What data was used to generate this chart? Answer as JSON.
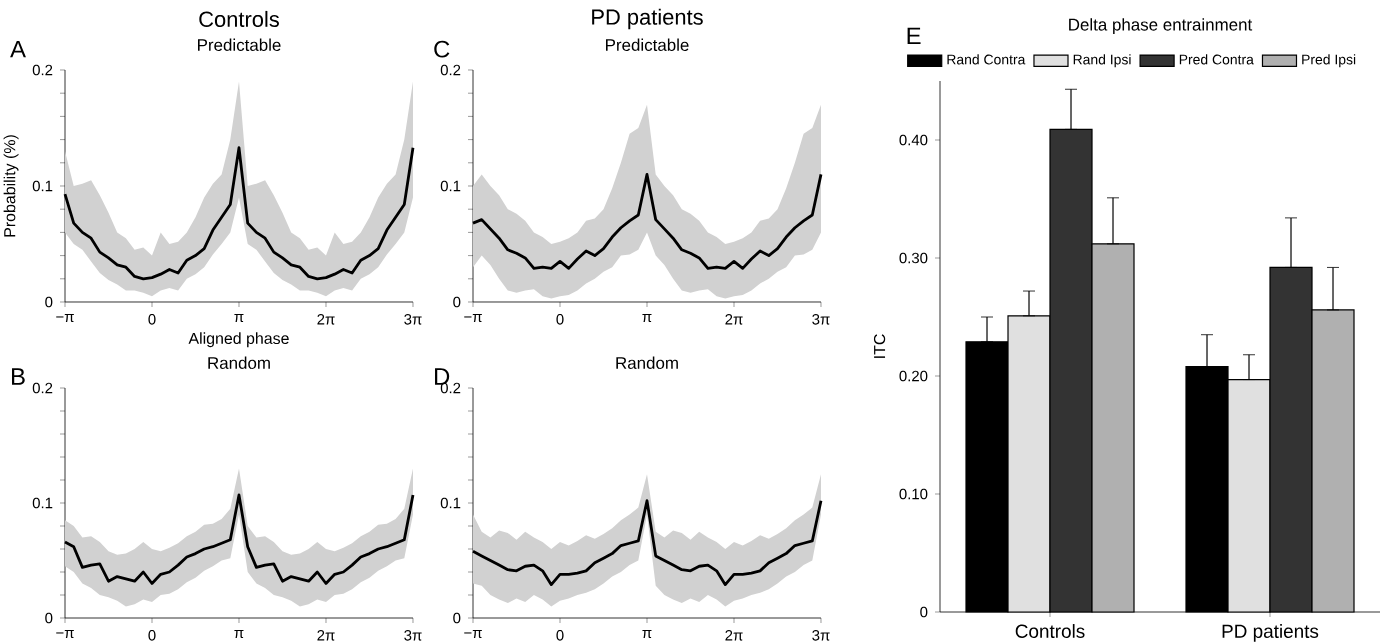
{
  "chart_data": [
    {
      "type": "line",
      "title": "Predictable",
      "xlabel": "Aligned phase",
      "ylabel": "Probability (%)",
      "annotations": [
        "A",
        "Controls"
      ],
      "x": [
        -3.1416,
        -2.8274,
        -2.5133,
        -2.1991,
        -1.885,
        -1.5708,
        -1.2566,
        -0.9425,
        -0.6283,
        -0.3142,
        0,
        0.3142,
        0.6283,
        0.9425,
        1.2566,
        1.5708,
        1.885,
        2.1991,
        2.5133,
        2.8274,
        3.1416,
        3.4558,
        3.7699,
        4.0841,
        4.3982,
        4.7124,
        5.0265,
        5.3407,
        5.6549,
        5.969,
        6.2832,
        6.5973,
        6.9115,
        7.2257,
        7.5398,
        7.854,
        8.1681,
        8.4823,
        8.7965,
        9.1106,
        9.4248
      ],
      "xlim": [
        -3.1416,
        9.4248
      ],
      "xticks": [
        {
          "value": -3.1416,
          "label": "−π"
        },
        0,
        {
          "value": 3.1416,
          "label": "π"
        },
        {
          "value": 6.2832,
          "label": "2π"
        },
        {
          "value": 9.4248,
          "label": "3π"
        }
      ],
      "ylim": [
        0,
        0.2
      ],
      "yticks": [
        0,
        {
          "value": 0.02,
          "label": null
        },
        {
          "value": 0.04,
          "label": null
        },
        {
          "value": 0.06,
          "label": null
        },
        {
          "value": 0.08,
          "label": null
        },
        0.1,
        {
          "value": 0.12,
          "label": null
        },
        {
          "value": 0.14,
          "label": null
        },
        {
          "value": 0.16,
          "label": null
        },
        {
          "value": 0.18,
          "label": null
        },
        0.2
      ],
      "series": [
        {
          "color": "#000000",
          "values": [
            0.093,
            0.068,
            0.06,
            0.055,
            0.043,
            0.038,
            0.032,
            0.03,
            0.022,
            0.02,
            0.021,
            0.024,
            0.028,
            0.025,
            0.036,
            0.04,
            0.046,
            0.062,
            0.073,
            0.084,
            0.133,
            0.068,
            0.06,
            0.055,
            0.043,
            0.038,
            0.032,
            0.03,
            0.022,
            0.02,
            0.021,
            0.024,
            0.028,
            0.025,
            0.036,
            0.04,
            0.046,
            0.062,
            0.073,
            0.084,
            0.133
          ],
          "lower": [
            0.06,
            0.05,
            0.045,
            0.035,
            0.025,
            0.019,
            0.015,
            0.01,
            0.01,
            0.008,
            0.005,
            0.01,
            0.012,
            0.01,
            0.02,
            0.024,
            0.03,
            0.041,
            0.05,
            0.06,
            0.09,
            0.05,
            0.045,
            0.035,
            0.025,
            0.019,
            0.015,
            0.01,
            0.01,
            0.008,
            0.005,
            0.01,
            0.012,
            0.01,
            0.02,
            0.024,
            0.03,
            0.041,
            0.05,
            0.06,
            0.09
          ],
          "upper": [
            0.13,
            0.1,
            0.102,
            0.105,
            0.092,
            0.077,
            0.06,
            0.055,
            0.045,
            0.047,
            0.04,
            0.06,
            0.05,
            0.052,
            0.06,
            0.073,
            0.09,
            0.102,
            0.11,
            0.14,
            0.19,
            0.1,
            0.102,
            0.105,
            0.092,
            0.077,
            0.06,
            0.055,
            0.045,
            0.047,
            0.04,
            0.06,
            0.05,
            0.052,
            0.06,
            0.073,
            0.09,
            0.102,
            0.11,
            0.14,
            0.19
          ]
        }
      ]
    },
    {
      "type": "line",
      "title": "Random",
      "annotations": [
        "B"
      ],
      "x": [
        -3.1416,
        -2.8274,
        -2.5133,
        -2.1991,
        -1.885,
        -1.5708,
        -1.2566,
        -0.9425,
        -0.6283,
        -0.3142,
        0,
        0.3142,
        0.6283,
        0.9425,
        1.2566,
        1.5708,
        1.885,
        2.1991,
        2.5133,
        2.8274,
        3.1416,
        3.4558,
        3.7699,
        4.0841,
        4.3982,
        4.7124,
        5.0265,
        5.3407,
        5.6549,
        5.969,
        6.2832,
        6.5973,
        6.9115,
        7.2257,
        7.5398,
        7.854,
        8.1681,
        8.4823,
        8.7965,
        9.1106,
        9.4248
      ],
      "xlim": [
        -3.1416,
        9.4248
      ],
      "xticks": [
        {
          "value": -3.1416,
          "label": "−π"
        },
        0,
        {
          "value": 3.1416,
          "label": "π"
        },
        {
          "value": 6.2832,
          "label": "2π"
        },
        {
          "value": 9.4248,
          "label": "3π"
        }
      ],
      "ylim": [
        0,
        0.2
      ],
      "yticks": [
        0,
        {
          "value": 0.02,
          "label": null
        },
        {
          "value": 0.04,
          "label": null
        },
        {
          "value": 0.06,
          "label": null
        },
        {
          "value": 0.08,
          "label": null
        },
        0.1,
        {
          "value": 0.12,
          "label": null
        },
        {
          "value": 0.14,
          "label": null
        },
        {
          "value": 0.16,
          "label": null
        },
        {
          "value": 0.18,
          "label": null
        },
        0.2
      ],
      "series": [
        {
          "color": "#000000",
          "values": [
            0.066,
            0.062,
            0.044,
            0.046,
            0.047,
            0.032,
            0.036,
            0.034,
            0.032,
            0.04,
            0.03,
            0.038,
            0.04,
            0.046,
            0.053,
            0.056,
            0.06,
            0.062,
            0.065,
            0.068,
            0.107,
            0.062,
            0.044,
            0.046,
            0.047,
            0.032,
            0.036,
            0.034,
            0.032,
            0.04,
            0.03,
            0.038,
            0.04,
            0.046,
            0.053,
            0.056,
            0.06,
            0.062,
            0.065,
            0.068,
            0.107
          ],
          "lower": [
            0.045,
            0.04,
            0.03,
            0.026,
            0.02,
            0.018,
            0.015,
            0.01,
            0.012,
            0.016,
            0.014,
            0.02,
            0.021,
            0.025,
            0.031,
            0.035,
            0.041,
            0.045,
            0.05,
            0.052,
            0.09,
            0.04,
            0.03,
            0.026,
            0.02,
            0.018,
            0.015,
            0.01,
            0.012,
            0.016,
            0.014,
            0.02,
            0.021,
            0.025,
            0.031,
            0.035,
            0.041,
            0.045,
            0.05,
            0.052,
            0.09
          ],
          "upper": [
            0.085,
            0.08,
            0.07,
            0.071,
            0.066,
            0.058,
            0.055,
            0.056,
            0.06,
            0.066,
            0.06,
            0.058,
            0.061,
            0.065,
            0.071,
            0.075,
            0.081,
            0.082,
            0.086,
            0.095,
            0.13,
            0.08,
            0.07,
            0.071,
            0.066,
            0.058,
            0.055,
            0.056,
            0.06,
            0.066,
            0.06,
            0.058,
            0.061,
            0.065,
            0.071,
            0.075,
            0.081,
            0.082,
            0.086,
            0.095,
            0.13
          ]
        }
      ]
    },
    {
      "type": "line",
      "title": "Predictable",
      "annotations": [
        "C",
        "PD patients"
      ],
      "x": [
        -3.1416,
        -2.8274,
        -2.5133,
        -2.1991,
        -1.885,
        -1.5708,
        -1.2566,
        -0.9425,
        -0.6283,
        -0.3142,
        0,
        0.3142,
        0.6283,
        0.9425,
        1.2566,
        1.5708,
        1.885,
        2.1991,
        2.5133,
        2.8274,
        3.1416,
        3.4558,
        3.7699,
        4.0841,
        4.3982,
        4.7124,
        5.0265,
        5.3407,
        5.6549,
        5.969,
        6.2832,
        6.5973,
        6.9115,
        7.2257,
        7.5398,
        7.854,
        8.1681,
        8.4823,
        8.7965,
        9.1106,
        9.4248
      ],
      "xlim": [
        -3.1416,
        9.4248
      ],
      "xticks": [
        {
          "value": -3.1416,
          "label": "−π"
        },
        0,
        {
          "value": 3.1416,
          "label": "π"
        },
        {
          "value": 6.2832,
          "label": "2π"
        },
        {
          "value": 9.4248,
          "label": "3π"
        }
      ],
      "ylim": [
        0,
        0.2
      ],
      "yticks": [
        0,
        {
          "value": 0.02,
          "label": null
        },
        {
          "value": 0.04,
          "label": null
        },
        {
          "value": 0.06,
          "label": null
        },
        {
          "value": 0.08,
          "label": null
        },
        0.1,
        {
          "value": 0.12,
          "label": null
        },
        {
          "value": 0.14,
          "label": null
        },
        {
          "value": 0.16,
          "label": null
        },
        {
          "value": 0.18,
          "label": null
        },
        0.2
      ],
      "series": [
        {
          "color": "#000000",
          "values": [
            0.068,
            0.071,
            0.063,
            0.055,
            0.045,
            0.042,
            0.038,
            0.029,
            0.03,
            0.029,
            0.035,
            0.029,
            0.037,
            0.044,
            0.04,
            0.046,
            0.056,
            0.064,
            0.07,
            0.075,
            0.11,
            0.071,
            0.063,
            0.055,
            0.045,
            0.042,
            0.038,
            0.029,
            0.03,
            0.029,
            0.035,
            0.029,
            0.037,
            0.044,
            0.04,
            0.046,
            0.056,
            0.064,
            0.07,
            0.075,
            0.11
          ],
          "lower": [
            0.03,
            0.04,
            0.032,
            0.02,
            0.01,
            0.008,
            0.01,
            0.011,
            0.005,
            0.003,
            0.005,
            0.006,
            0.01,
            0.016,
            0.02,
            0.026,
            0.03,
            0.04,
            0.041,
            0.045,
            0.06,
            0.04,
            0.032,
            0.02,
            0.01,
            0.008,
            0.01,
            0.011,
            0.005,
            0.003,
            0.005,
            0.006,
            0.01,
            0.016,
            0.02,
            0.026,
            0.03,
            0.04,
            0.041,
            0.045,
            0.06
          ],
          "upper": [
            0.1,
            0.11,
            0.1,
            0.092,
            0.08,
            0.076,
            0.07,
            0.06,
            0.056,
            0.05,
            0.052,
            0.055,
            0.06,
            0.07,
            0.072,
            0.08,
            0.098,
            0.12,
            0.145,
            0.15,
            0.17,
            0.11,
            0.1,
            0.092,
            0.08,
            0.076,
            0.07,
            0.06,
            0.056,
            0.05,
            0.052,
            0.055,
            0.06,
            0.07,
            0.072,
            0.08,
            0.098,
            0.12,
            0.145,
            0.15,
            0.17
          ]
        }
      ]
    },
    {
      "type": "line",
      "title": "Random",
      "annotations": [
        "D"
      ],
      "x": [
        -3.1416,
        -2.8274,
        -2.5133,
        -2.1991,
        -1.885,
        -1.5708,
        -1.2566,
        -0.9425,
        -0.6283,
        -0.3142,
        0,
        0.3142,
        0.6283,
        0.9425,
        1.2566,
        1.5708,
        1.885,
        2.1991,
        2.5133,
        2.8274,
        3.1416,
        3.4558,
        3.7699,
        4.0841,
        4.3982,
        4.7124,
        5.0265,
        5.3407,
        5.6549,
        5.969,
        6.2832,
        6.5973,
        6.9115,
        7.2257,
        7.5398,
        7.854,
        8.1681,
        8.4823,
        8.7965,
        9.1106,
        9.4248
      ],
      "xlim": [
        -3.1416,
        9.4248
      ],
      "xticks": [
        {
          "value": -3.1416,
          "label": "−π"
        },
        0,
        {
          "value": 3.1416,
          "label": "π"
        },
        {
          "value": 6.2832,
          "label": "2π"
        },
        {
          "value": 9.4248,
          "label": "3π"
        }
      ],
      "ylim": [
        0,
        0.2
      ],
      "yticks": [
        0,
        {
          "value": 0.02,
          "label": null
        },
        {
          "value": 0.04,
          "label": null
        },
        {
          "value": 0.06,
          "label": null
        },
        {
          "value": 0.08,
          "label": null
        },
        0.1,
        {
          "value": 0.12,
          "label": null
        },
        {
          "value": 0.14,
          "label": null
        },
        {
          "value": 0.16,
          "label": null
        },
        {
          "value": 0.18,
          "label": null
        },
        0.2
      ],
      "series": [
        {
          "color": "#000000",
          "values": [
            0.058,
            0.054,
            0.05,
            0.046,
            0.042,
            0.041,
            0.045,
            0.046,
            0.041,
            0.029,
            0.038,
            0.038,
            0.039,
            0.041,
            0.048,
            0.052,
            0.056,
            0.063,
            0.065,
            0.067,
            0.102,
            0.054,
            0.05,
            0.046,
            0.042,
            0.041,
            0.045,
            0.046,
            0.041,
            0.029,
            0.038,
            0.038,
            0.039,
            0.041,
            0.048,
            0.052,
            0.056,
            0.063,
            0.065,
            0.067,
            0.102
          ],
          "lower": [
            0.03,
            0.028,
            0.02,
            0.016,
            0.013,
            0.017,
            0.014,
            0.02,
            0.016,
            0.01,
            0.015,
            0.017,
            0.02,
            0.022,
            0.025,
            0.03,
            0.036,
            0.04,
            0.046,
            0.05,
            0.09,
            0.028,
            0.02,
            0.016,
            0.013,
            0.017,
            0.014,
            0.02,
            0.016,
            0.01,
            0.015,
            0.017,
            0.02,
            0.022,
            0.025,
            0.03,
            0.036,
            0.04,
            0.046,
            0.05,
            0.09
          ],
          "upper": [
            0.09,
            0.075,
            0.07,
            0.076,
            0.074,
            0.068,
            0.075,
            0.07,
            0.066,
            0.06,
            0.066,
            0.063,
            0.067,
            0.072,
            0.069,
            0.073,
            0.078,
            0.085,
            0.09,
            0.096,
            0.125,
            0.075,
            0.07,
            0.076,
            0.074,
            0.068,
            0.075,
            0.07,
            0.066,
            0.06,
            0.066,
            0.063,
            0.067,
            0.072,
            0.069,
            0.073,
            0.078,
            0.085,
            0.09,
            0.096,
            0.125
          ]
        }
      ]
    },
    {
      "type": "bar",
      "title": "Delta phase entrainment",
      "ylabel": "ITC",
      "annotations": [
        "E"
      ],
      "legend": "top",
      "categories": [
        "Controls",
        "PD patients"
      ],
      "ylim": [
        0,
        0.45
      ],
      "yticks": [
        0,
        {
          "value": 0.1,
          "label": "0.10"
        },
        {
          "value": 0.2,
          "label": "0.20"
        },
        {
          "value": 0.3,
          "label": "0.30"
        },
        {
          "value": 0.4,
          "label": "0.40"
        }
      ],
      "series": [
        {
          "name": "Rand Contra",
          "color": "#000000",
          "values": [
            0.229,
            0.208
          ],
          "errors": [
            [
              0.229,
              0.25
            ],
            [
              0.208,
              0.235
            ]
          ]
        },
        {
          "name": "Rand Ipsi",
          "color": "#e0e0e0",
          "values": [
            0.251,
            0.197
          ],
          "errors": [
            [
              0.251,
              0.272
            ],
            [
              0.197,
              0.218
            ]
          ]
        },
        {
          "name": "Pred Contra",
          "color": "#333333",
          "values": [
            0.409,
            0.292
          ],
          "errors": [
            [
              0.409,
              0.443
            ],
            [
              0.292,
              0.334
            ]
          ]
        },
        {
          "name": "Pred Ipsi",
          "color": "#b0b0b0",
          "values": [
            0.312,
            0.256
          ],
          "errors": [
            [
              0.312,
              0.351
            ],
            [
              0.256,
              0.292
            ]
          ]
        }
      ]
    }
  ]
}
